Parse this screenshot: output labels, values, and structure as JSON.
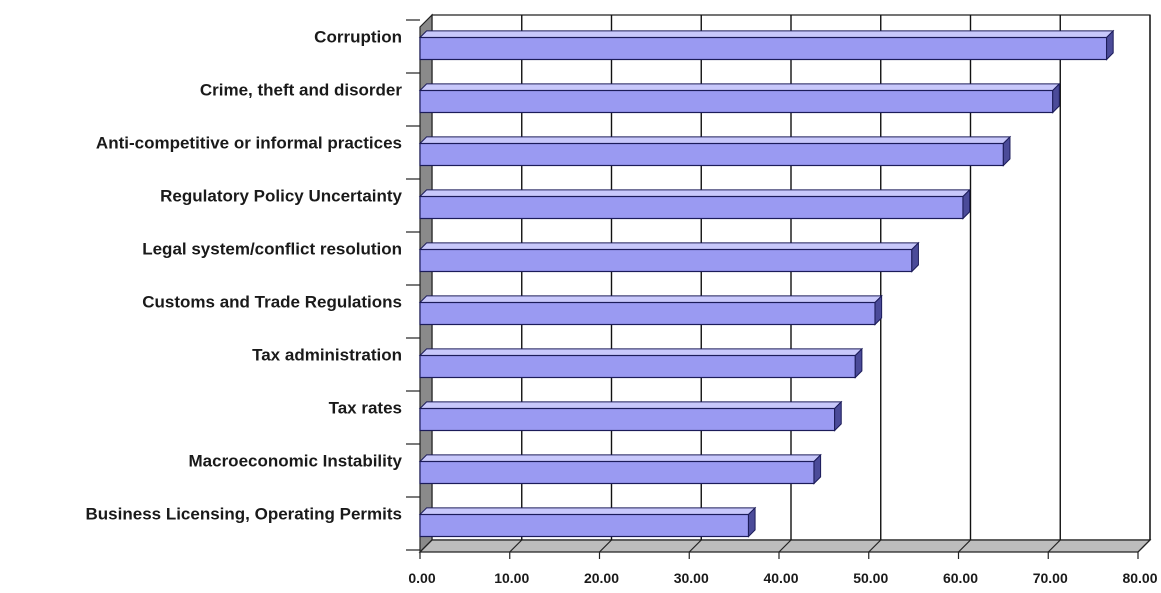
{
  "chart_data": {
    "type": "bar",
    "orientation": "horizontal",
    "style": "3d",
    "categories": [
      "Corruption",
      "Crime, theft and disorder",
      "Anti-competitive or informal practices",
      "Regulatory Policy Uncertainty",
      "Legal system/conflict resolution",
      "Customs and Trade Regulations",
      "Tax administration",
      "Tax rates",
      "Macroeconomic Instability",
      "Business Licensing, Operating Permits"
    ],
    "values": [
      76.5,
      70.5,
      65.0,
      60.5,
      54.8,
      50.7,
      48.5,
      46.2,
      43.9,
      36.6
    ],
    "xlim": [
      0,
      80
    ],
    "xticks": [
      "0.00",
      "10.00",
      "20.00",
      "30.00",
      "40.00",
      "50.00",
      "60.00",
      "70.00",
      "80.00"
    ],
    "grid": true,
    "bar_color": "#9a9af2",
    "title": "",
    "xlabel": "",
    "ylabel": ""
  }
}
